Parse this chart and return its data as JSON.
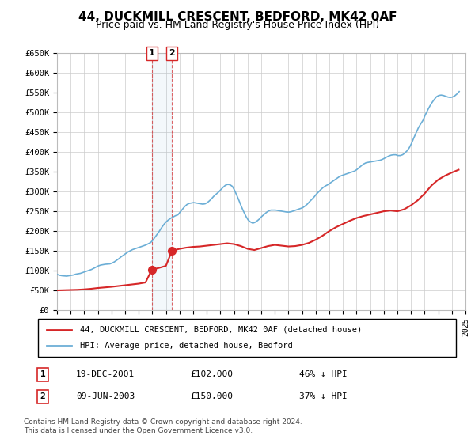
{
  "title": "44, DUCKMILL CRESCENT, BEDFORD, MK42 0AF",
  "subtitle": "Price paid vs. HM Land Registry's House Price Index (HPI)",
  "ylabel_ticks": [
    "£0",
    "£50K",
    "£100K",
    "£150K",
    "£200K",
    "£250K",
    "£300K",
    "£350K",
    "£400K",
    "£450K",
    "£500K",
    "£550K",
    "£600K",
    "£650K"
  ],
  "ytick_values": [
    0,
    50000,
    100000,
    150000,
    200000,
    250000,
    300000,
    350000,
    400000,
    450000,
    500000,
    550000,
    600000,
    650000
  ],
  "x_start_year": 1995,
  "x_end_year": 2025,
  "background_color": "#ffffff",
  "grid_color": "#cccccc",
  "hpi_color": "#6baed6",
  "price_color": "#d62728",
  "sale1_date": 2001.96,
  "sale1_price": 102000,
  "sale2_date": 2003.44,
  "sale2_price": 150000,
  "legend_property": "44, DUCKMILL CRESCENT, BEDFORD, MK42 0AF (detached house)",
  "legend_hpi": "HPI: Average price, detached house, Bedford",
  "table_rows": [
    {
      "num": "1",
      "date": "19-DEC-2001",
      "price": "£102,000",
      "pct": "46% ↓ HPI"
    },
    {
      "num": "2",
      "date": "09-JUN-2003",
      "price": "£150,000",
      "pct": "37% ↓ HPI"
    }
  ],
  "footnote": "Contains HM Land Registry data © Crown copyright and database right 2024.\nThis data is licensed under the Open Government Licence v3.0.",
  "hpi_data": {
    "years": [
      1995.04,
      1995.21,
      1995.38,
      1995.54,
      1995.71,
      1995.88,
      1996.04,
      1996.21,
      1996.38,
      1996.54,
      1996.71,
      1996.88,
      1997.04,
      1997.21,
      1997.38,
      1997.54,
      1997.71,
      1997.88,
      1998.04,
      1998.21,
      1998.38,
      1998.54,
      1998.71,
      1998.88,
      1999.04,
      1999.21,
      1999.38,
      1999.54,
      1999.71,
      1999.88,
      2000.04,
      2000.21,
      2000.38,
      2000.54,
      2000.71,
      2000.88,
      2001.04,
      2001.21,
      2001.38,
      2001.54,
      2001.71,
      2001.88,
      2002.04,
      2002.21,
      2002.38,
      2002.54,
      2002.71,
      2002.88,
      2003.04,
      2003.21,
      2003.38,
      2003.54,
      2003.71,
      2003.88,
      2004.04,
      2004.21,
      2004.38,
      2004.54,
      2004.71,
      2004.88,
      2005.04,
      2005.21,
      2005.38,
      2005.54,
      2005.71,
      2005.88,
      2006.04,
      2006.21,
      2006.38,
      2006.54,
      2006.71,
      2006.88,
      2007.04,
      2007.21,
      2007.38,
      2007.54,
      2007.71,
      2007.88,
      2008.04,
      2008.21,
      2008.38,
      2008.54,
      2008.71,
      2008.88,
      2009.04,
      2009.21,
      2009.38,
      2009.54,
      2009.71,
      2009.88,
      2010.04,
      2010.21,
      2010.38,
      2010.54,
      2010.71,
      2010.88,
      2011.04,
      2011.21,
      2011.38,
      2011.54,
      2011.71,
      2011.88,
      2012.04,
      2012.21,
      2012.38,
      2012.54,
      2012.71,
      2012.88,
      2013.04,
      2013.21,
      2013.38,
      2013.54,
      2013.71,
      2013.88,
      2014.04,
      2014.21,
      2014.38,
      2014.54,
      2014.71,
      2014.88,
      2015.04,
      2015.21,
      2015.38,
      2015.54,
      2015.71,
      2015.88,
      2016.04,
      2016.21,
      2016.38,
      2016.54,
      2016.71,
      2016.88,
      2017.04,
      2017.21,
      2017.38,
      2017.54,
      2017.71,
      2017.88,
      2018.04,
      2018.21,
      2018.38,
      2018.54,
      2018.71,
      2018.88,
      2019.04,
      2019.21,
      2019.38,
      2019.54,
      2019.71,
      2019.88,
      2020.04,
      2020.21,
      2020.38,
      2020.54,
      2020.71,
      2020.88,
      2021.04,
      2021.21,
      2021.38,
      2021.54,
      2021.71,
      2021.88,
      2022.04,
      2022.21,
      2022.38,
      2022.54,
      2022.71,
      2022.88,
      2023.04,
      2023.21,
      2023.38,
      2023.54,
      2023.71,
      2023.88,
      2024.04,
      2024.21,
      2024.38,
      2024.54
    ],
    "values": [
      90000,
      88000,
      87000,
      86500,
      86000,
      87000,
      88000,
      89000,
      91000,
      92000,
      93000,
      95000,
      97000,
      99000,
      101000,
      103000,
      106000,
      109000,
      112000,
      114000,
      115000,
      116000,
      116500,
      117000,
      119000,
      122000,
      126000,
      130000,
      135000,
      139000,
      143000,
      147000,
      150000,
      153000,
      155000,
      157000,
      159000,
      161000,
      163000,
      165000,
      168000,
      171000,
      177000,
      185000,
      193000,
      201000,
      210000,
      218000,
      224000,
      229000,
      233000,
      236000,
      239000,
      241000,
      248000,
      255000,
      262000,
      267000,
      270000,
      271000,
      272000,
      271000,
      270000,
      269000,
      268000,
      269000,
      272000,
      277000,
      283000,
      289000,
      294000,
      299000,
      305000,
      311000,
      316000,
      318000,
      317000,
      313000,
      303000,
      290000,
      276000,
      262000,
      249000,
      237000,
      228000,
      223000,
      220000,
      222000,
      226000,
      231000,
      237000,
      242000,
      247000,
      251000,
      253000,
      253000,
      253000,
      252000,
      251000,
      250000,
      249000,
      248000,
      248000,
      249000,
      251000,
      253000,
      255000,
      257000,
      259000,
      263000,
      268000,
      274000,
      280000,
      286000,
      293000,
      299000,
      305000,
      310000,
      314000,
      317000,
      321000,
      325000,
      329000,
      333000,
      337000,
      340000,
      342000,
      344000,
      346000,
      348000,
      350000,
      352000,
      356000,
      361000,
      366000,
      370000,
      373000,
      374000,
      375000,
      376000,
      377000,
      378000,
      379000,
      381000,
      384000,
      387000,
      390000,
      392000,
      393000,
      393000,
      391000,
      391000,
      393000,
      397000,
      403000,
      411000,
      422000,
      436000,
      449000,
      461000,
      471000,
      480000,
      493000,
      505000,
      516000,
      525000,
      533000,
      540000,
      543000,
      544000,
      543000,
      541000,
      539000,
      538000,
      539000,
      542000,
      547000,
      553000
    ]
  },
  "price_data": {
    "years": [
      1995.04,
      1995.5,
      1996.0,
      1996.5,
      1997.0,
      1997.5,
      1998.0,
      1998.5,
      1999.0,
      1999.5,
      2000.0,
      2000.5,
      2001.0,
      2001.5,
      2001.96,
      2002.5,
      2003.0,
      2003.44,
      2004.0,
      2004.5,
      2005.0,
      2005.5,
      2006.0,
      2006.5,
      2007.0,
      2007.5,
      2008.0,
      2008.5,
      2009.0,
      2009.5,
      2010.0,
      2010.5,
      2011.0,
      2011.5,
      2012.0,
      2012.5,
      2013.0,
      2013.5,
      2014.0,
      2014.5,
      2015.0,
      2015.5,
      2016.0,
      2016.5,
      2017.0,
      2017.5,
      2018.0,
      2018.5,
      2019.0,
      2019.5,
      2020.0,
      2020.5,
      2021.0,
      2021.5,
      2022.0,
      2022.5,
      2023.0,
      2023.5,
      2024.0,
      2024.5
    ],
    "values": [
      50000,
      50500,
      51000,
      51500,
      52500,
      54000,
      56000,
      57500,
      59000,
      61000,
      63000,
      65000,
      67000,
      70000,
      102000,
      107000,
      112000,
      150000,
      155000,
      158000,
      160000,
      161000,
      163000,
      165000,
      167000,
      169000,
      167000,
      162000,
      155000,
      152000,
      157000,
      162000,
      165000,
      163000,
      161000,
      162000,
      165000,
      170000,
      178000,
      188000,
      200000,
      210000,
      218000,
      226000,
      233000,
      238000,
      242000,
      246000,
      250000,
      252000,
      250000,
      255000,
      265000,
      278000,
      295000,
      315000,
      330000,
      340000,
      348000,
      355000
    ]
  }
}
